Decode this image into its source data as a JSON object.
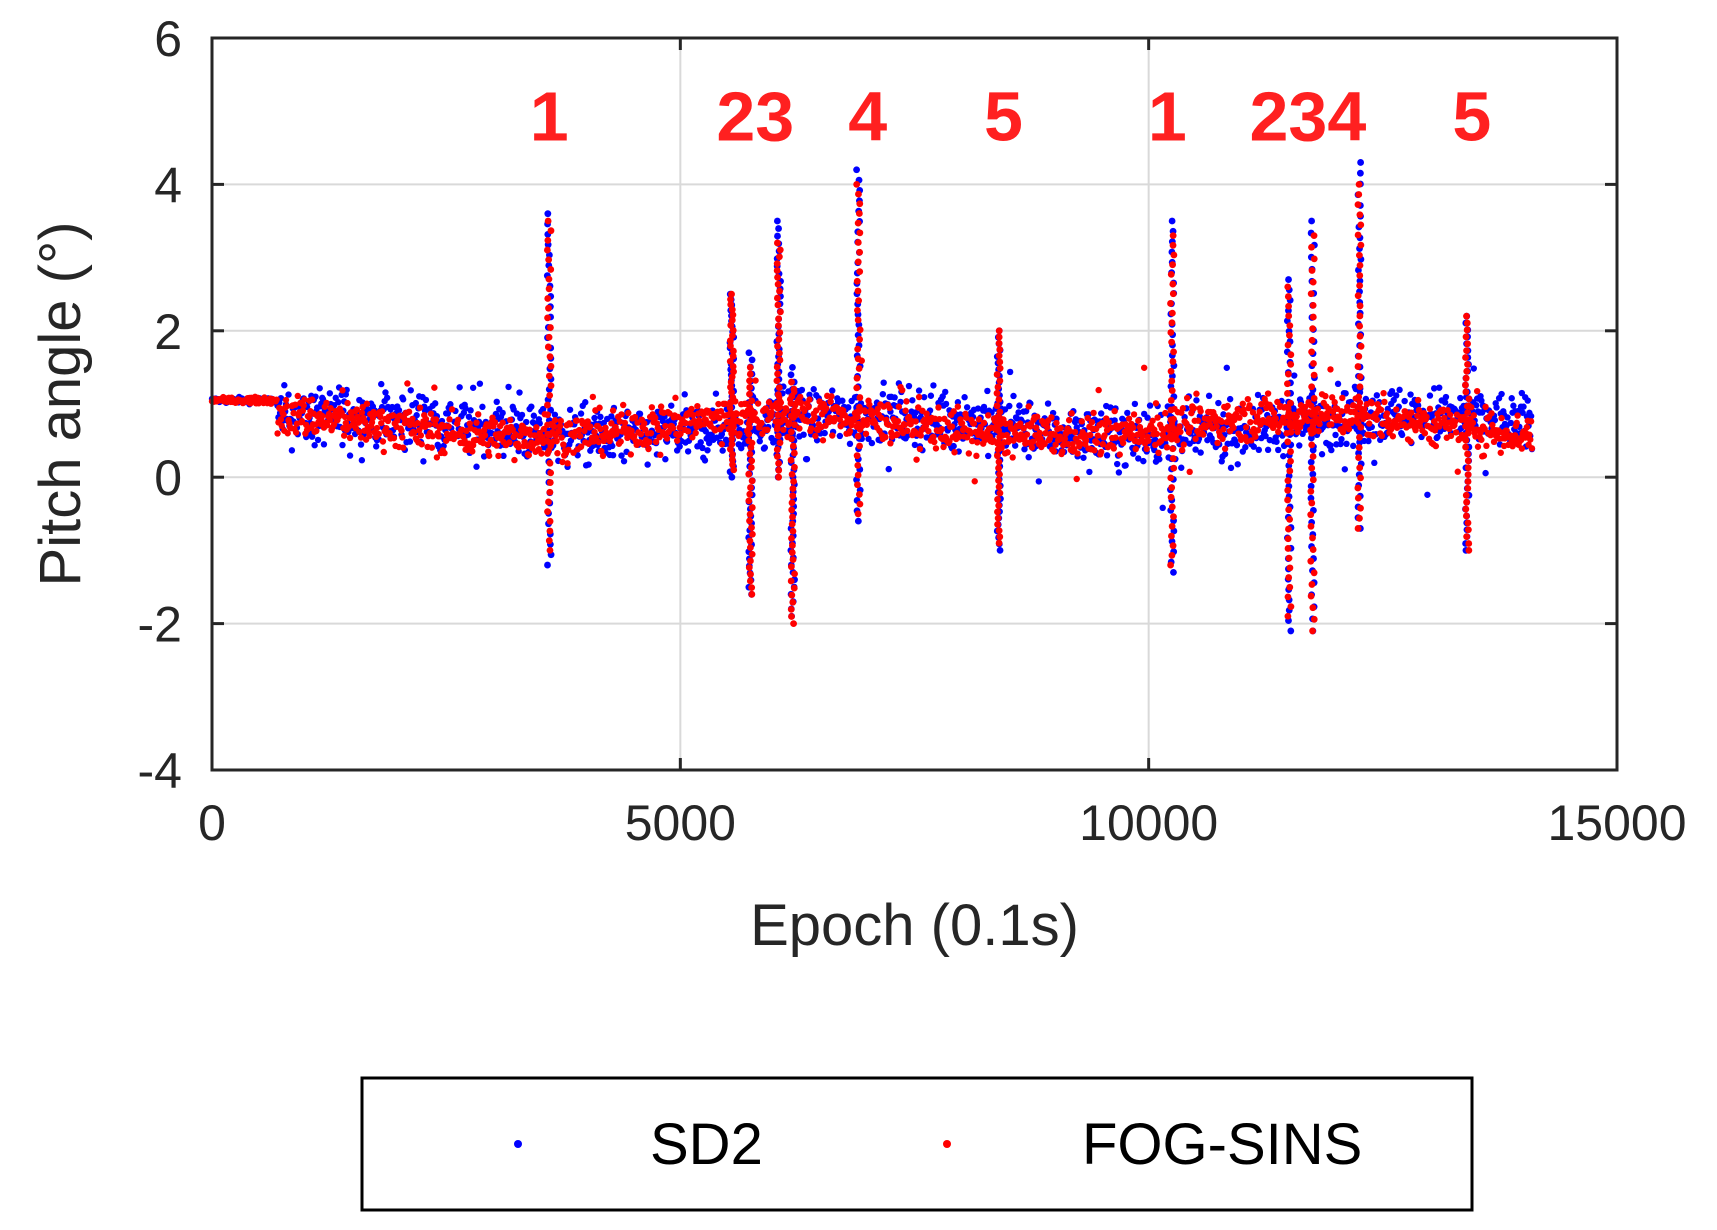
{
  "chart_data": {
    "type": "scatter",
    "title": "",
    "xlabel": "Epoch (0.1s)",
    "ylabel": "Pitch angle (°)",
    "xlim": [
      0,
      15000
    ],
    "ylim": [
      -4,
      6
    ],
    "xticks": [
      0,
      5000,
      10000,
      15000
    ],
    "xtick_labels": [
      "0",
      "5000",
      "10000",
      "15000"
    ],
    "yticks": [
      -4,
      -2,
      0,
      2,
      4,
      6
    ],
    "ytick_labels": [
      "-4",
      "-2",
      "0",
      "2",
      "4",
      "6"
    ],
    "grid": true,
    "legend_position": "bottom-outside",
    "series": [
      {
        "name": "SD2",
        "color": "#0000ff",
        "x_range": [
          0,
          14100
        ],
        "baseline": 0.7,
        "noise_band": [
          0.0,
          1.4
        ],
        "spikes": [
          {
            "x": 3600,
            "min": -1.2,
            "max": 3.6
          },
          {
            "x": 5550,
            "min": 0.0,
            "max": 2.5
          },
          {
            "x": 5750,
            "min": -1.6,
            "max": 1.7
          },
          {
            "x": 6050,
            "min": 0.0,
            "max": 3.5
          },
          {
            "x": 6200,
            "min": -1.9,
            "max": 1.5
          },
          {
            "x": 6900,
            "min": -0.6,
            "max": 4.2
          },
          {
            "x": 8400,
            "min": -1.0,
            "max": 2.0
          },
          {
            "x": 10250,
            "min": -1.3,
            "max": 3.5
          },
          {
            "x": 11500,
            "min": -2.1,
            "max": 2.7
          },
          {
            "x": 11750,
            "min": -2.1,
            "max": 3.5
          },
          {
            "x": 12250,
            "min": -0.7,
            "max": 4.3
          },
          {
            "x": 13400,
            "min": -1.0,
            "max": 2.2
          }
        ]
      },
      {
        "name": "FOG-SINS",
        "color": "#ff0000",
        "x_range": [
          0,
          14100
        ],
        "baseline": 0.7,
        "noise_band": [
          0.1,
          1.3
        ],
        "spikes": [
          {
            "x": 3600,
            "min": -1.0,
            "max": 3.5
          },
          {
            "x": 5550,
            "min": 0.1,
            "max": 2.5
          },
          {
            "x": 5750,
            "min": -1.6,
            "max": 1.5
          },
          {
            "x": 6050,
            "min": 0.0,
            "max": 3.2
          },
          {
            "x": 6200,
            "min": -2.0,
            "max": 1.3
          },
          {
            "x": 6900,
            "min": -0.5,
            "max": 4.0
          },
          {
            "x": 8400,
            "min": -0.9,
            "max": 2.0
          },
          {
            "x": 10250,
            "min": -1.2,
            "max": 3.3
          },
          {
            "x": 11500,
            "min": -1.9,
            "max": 2.6
          },
          {
            "x": 11750,
            "min": -2.1,
            "max": 3.3
          },
          {
            "x": 12250,
            "min": -0.7,
            "max": 4.0
          },
          {
            "x": 13400,
            "min": -1.0,
            "max": 2.2
          }
        ]
      }
    ],
    "annotations": [
      {
        "text": "1",
        "x": 3600,
        "y": 4.6
      },
      {
        "text": "23",
        "x": 5800,
        "y": 4.6
      },
      {
        "text": "4",
        "x": 7000,
        "y": 4.6
      },
      {
        "text": "5",
        "x": 8450,
        "y": 4.6
      },
      {
        "text": "1",
        "x": 10200,
        "y": 4.6
      },
      {
        "text": "234",
        "x": 11700,
        "y": 4.6
      },
      {
        "text": "5",
        "x": 13450,
        "y": 4.6
      }
    ]
  }
}
